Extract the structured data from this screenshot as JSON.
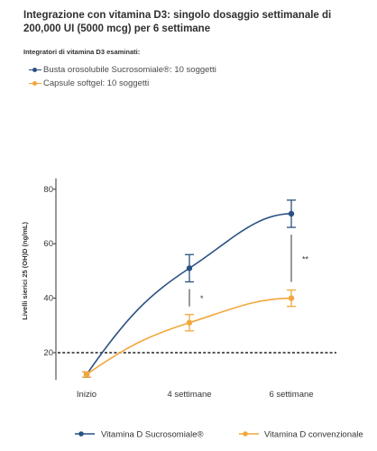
{
  "header": {
    "title": "Integrazione con vitamina D3: singolo dosaggio settimanale di 200,000 UI (5000 mcg) per 6 settimane",
    "subtitle": "Integratori di vitamina D3 esaminati:",
    "items": [
      {
        "label": "Busta orosolubile Sucrosomiale®: 10 soggetti",
        "color": "#2a5082"
      },
      {
        "label": "Capsule softgel: 10 soggetti",
        "color": "#f2a73c"
      }
    ]
  },
  "chart_data": {
    "type": "line",
    "categories": [
      "Inizio",
      "4 settimane",
      "6 settimane"
    ],
    "ylabel": "Livelli sierici 25 (OH)D (ng/mL)",
    "yticks": [
      20,
      40,
      60,
      80
    ],
    "ylim": [
      10,
      84
    ],
    "grid": false,
    "legend_position": "bottom",
    "series": [
      {
        "name": "Vitamina D Sucrosomiale®",
        "color": "#2a5082",
        "values": [
          12,
          51,
          71
        ],
        "err": [
          1,
          5,
          5
        ]
      },
      {
        "name": "Vitamina D convenzionale",
        "color": "#f2a73c",
        "values": [
          12,
          31,
          40
        ],
        "err": [
          1,
          3,
          3
        ]
      }
    ],
    "reference_line": {
      "value": 20,
      "style": "dotted",
      "color": "#222222"
    },
    "annotations": [
      {
        "text": "*",
        "category": "4 settimane"
      },
      {
        "text": "**",
        "category": "6 settimane"
      }
    ]
  }
}
